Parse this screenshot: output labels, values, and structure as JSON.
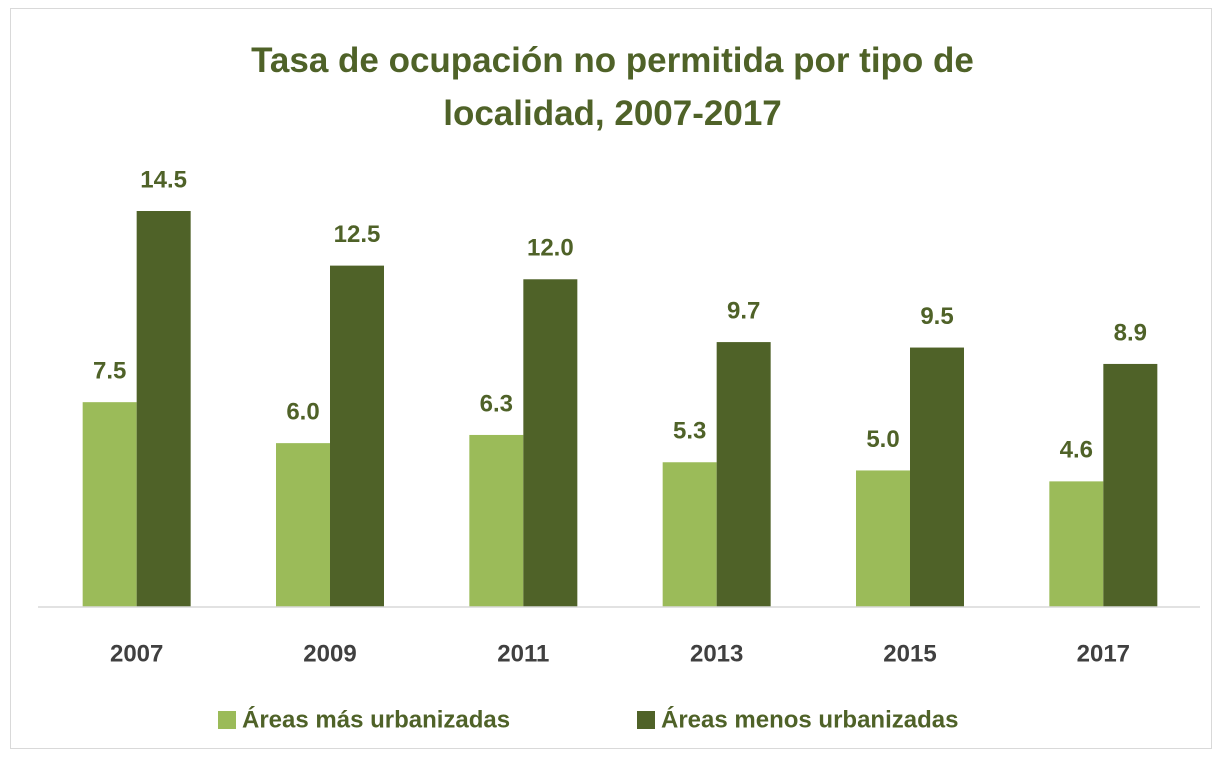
{
  "chart_data": {
    "type": "bar",
    "title": "Tasa de ocupación no permitida por tipo de localidad, 2007-2017",
    "categories": [
      "2007",
      "2009",
      "2011",
      "2013",
      "2015",
      "2017"
    ],
    "series": [
      {
        "name": "Áreas más urbanizadas",
        "color": "#9bbb59",
        "values": [
          7.5,
          6.0,
          6.3,
          5.3,
          5.0,
          4.6
        ],
        "value_labels": [
          "7.5",
          "6.0",
          "6.3",
          "5.3",
          "5.0",
          "4.6"
        ]
      },
      {
        "name": "Áreas menos urbanizadas",
        "color": "#4f6228",
        "values": [
          14.5,
          12.5,
          12.0,
          9.7,
          9.5,
          8.9
        ],
        "value_labels": [
          "14.5",
          "12.5",
          "12.0",
          "9.7",
          "9.5",
          "8.9"
        ]
      }
    ]
  }
}
